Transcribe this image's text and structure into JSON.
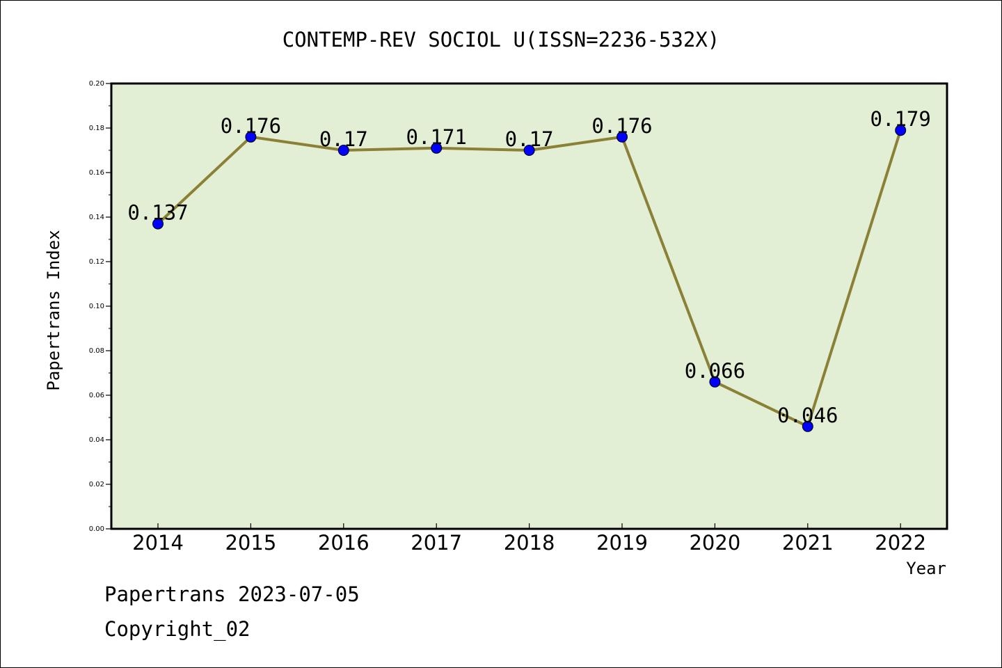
{
  "footer": {
    "source_line": "Papertrans 2023-07-05",
    "copyright_line": "Copyright_02"
  },
  "colors": {
    "plot_background": "#e2efd4",
    "line": "#8b8136",
    "marker": "#0000ff"
  },
  "chart_data": {
    "type": "line",
    "title": "CONTEMP-REV SOCIOL U(ISSN=2236-532X)",
    "xlabel": "Year",
    "ylabel": "Papertrans Index",
    "categories": [
      "2014",
      "2015",
      "2016",
      "2017",
      "2018",
      "2019",
      "2020",
      "2021",
      "2022"
    ],
    "values": [
      0.137,
      0.176,
      0.17,
      0.171,
      0.17,
      0.176,
      0.066,
      0.046,
      0.179
    ],
    "data_labels": [
      "0.137",
      "0.176",
      "0.17",
      "0.171",
      "0.17",
      "0.176",
      "0.066",
      "0.046",
      "0.179"
    ],
    "ylim": [
      0,
      0.2
    ],
    "yticks": [
      "0.00",
      "0.02",
      "0.04",
      "0.06",
      "0.08",
      "0.10",
      "0.12",
      "0.14",
      "0.16",
      "0.18",
      "0.20"
    ],
    "grid": false,
    "legend": "none"
  }
}
